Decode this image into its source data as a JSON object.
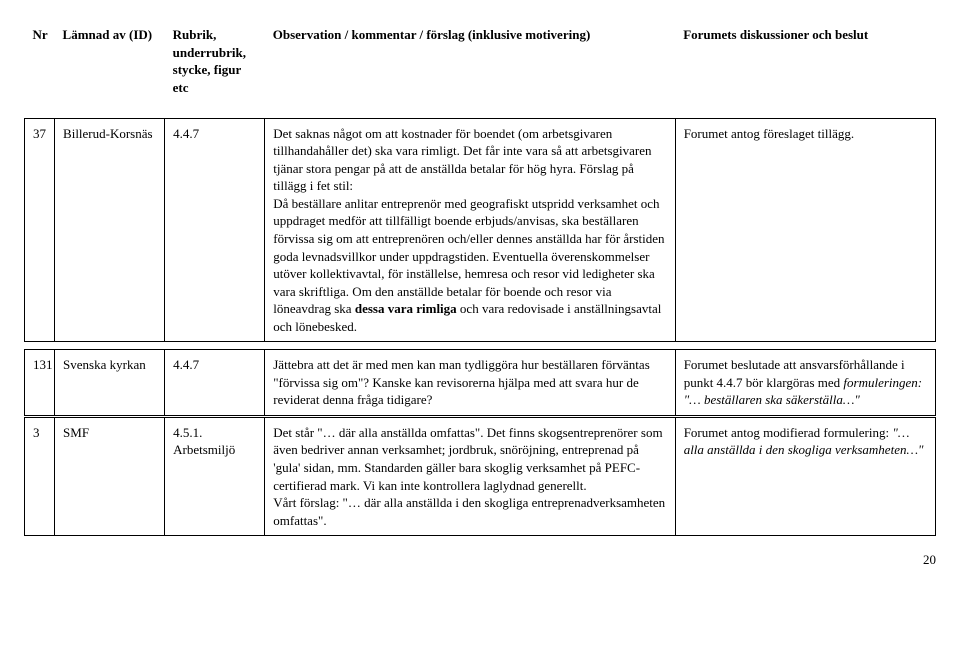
{
  "header": {
    "nr": "Nr",
    "from": "Lämnad av (ID)",
    "section": "Rubrik, underrubrik, stycke, figur etc",
    "obs": "Observation / kommentar / förslag (inklusive motivering)",
    "decision": "Forumets diskussioner och beslut"
  },
  "rows": [
    {
      "nr": "37",
      "from": "Billerud-Korsnäs",
      "section": "4.4.7",
      "obs": "Det saknas något om att kostnader för boendet (om arbetsgivaren tillhandahåller det) ska vara rimligt. Det får inte vara så att arbetsgivaren tjänar stora pengar på att de anställda betalar för hög hyra. Förslag på tillägg i fet stil:\nDå beställare anlitar entreprenör med geografiskt utspridd verksamhet och uppdraget medför att tillfälligt boende erbjuds/anvisas, ska beställaren förvissa sig om att entreprenören och/eller dennes anställda har för årstiden goda levnadsvillkor under uppdragstiden. Eventuella överenskommelser utöver kollektivavtal, för inställelse, hemresa och resor vid ledigheter ska vara skriftliga. Om den anställde betalar för boende och resor via löneavdrag ska <b>dessa vara rimliga</b> och vara redovisade i anställningsavtal och lönebesked.",
      "decision": "Forumet antog föreslaget tillägg."
    },
    {
      "nr": "131",
      "from": "Svenska kyrkan",
      "section": "4.4.7",
      "obs": "Jättebra att det är med men kan man tydliggöra hur beställaren förväntas \"förvissa sig om\"? Kanske kan revisorerna hjälpa med att svara hur de reviderat denna fråga tidigare?",
      "decision": "Forumet beslutade att ansvarsförhållande i punkt 4.4.7 bör klargöras med <i>formuleringen: \"… beställaren ska säkerställa…\"</i>"
    },
    {
      "nr": "3",
      "from": "SMF",
      "section": "4.5.1. Arbetsmiljö",
      "obs": "Det står \"… där alla anställda omfattas\". Det finns skogsentreprenörer som även bedriver annan verksamhet; jordbruk, snöröjning, entreprenad på 'gula' sidan, mm. Standarden gäller bara skoglig verksamhet på PEFC-certifierad mark. Vi kan inte kontrollera laglydnad generellt.\nVårt förslag: \"… där alla anställda i den skogliga entreprenadverksamheten omfattas\".",
      "decision": "Forumet antog modifierad formulering: <i>\"…alla anställda i den skogliga verksamheten…\"</i>"
    }
  ],
  "page_number": "20"
}
